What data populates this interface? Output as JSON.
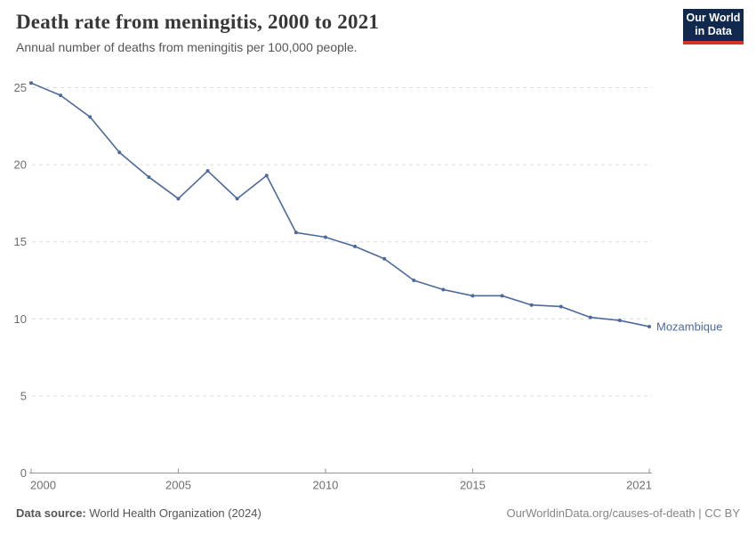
{
  "header": {
    "title": "Death rate from meningitis, 2000 to 2021",
    "subtitle": "Annual number of deaths from meningitis per 100,000 people.",
    "logo": {
      "line1": "Our World",
      "line2": "in Data"
    }
  },
  "chart_data": {
    "type": "line",
    "title": "Death rate from meningitis, 2000 to 2021",
    "subtitle": "Annual number of deaths from meningitis per 100,000 people.",
    "x": [
      2000,
      2001,
      2002,
      2003,
      2004,
      2005,
      2006,
      2007,
      2008,
      2009,
      2010,
      2011,
      2012,
      2013,
      2014,
      2015,
      2016,
      2017,
      2018,
      2019,
      2020,
      2021
    ],
    "series": [
      {
        "name": "Mozambique",
        "color": "#4c6a9c",
        "values": [
          25.3,
          24.5,
          23.1,
          20.8,
          19.2,
          17.8,
          19.6,
          17.8,
          19.3,
          15.6,
          15.3,
          14.7,
          13.9,
          12.5,
          11.9,
          11.5,
          11.5,
          10.9,
          10.8,
          10.1,
          9.9,
          9.5
        ]
      }
    ],
    "x_ticks": [
      2000,
      2005,
      2010,
      2015,
      2021
    ],
    "y_ticks": [
      0,
      5,
      10,
      15,
      20,
      25
    ],
    "xlim": [
      2000,
      2021
    ],
    "ylim": [
      0,
      25
    ],
    "xlabel": "",
    "ylabel": "",
    "grid": "horizontal-dashed",
    "legend": "end-of-line-label"
  },
  "theme": {
    "accent": "#4c6a9c",
    "title_color": "#383838",
    "text_muted": "#555555",
    "tick_color": "#6e6e6e",
    "grid_color": "#dcdcdc",
    "axis_color": "#949494",
    "credit_color": "#858585",
    "logo_bg": "#12294e",
    "logo_accent": "#d5312c"
  },
  "footer": {
    "source_label": "Data source:",
    "source_value": "World Health Organization (2024)",
    "credit": "OurWorldinData.org/causes-of-death | CC BY"
  }
}
